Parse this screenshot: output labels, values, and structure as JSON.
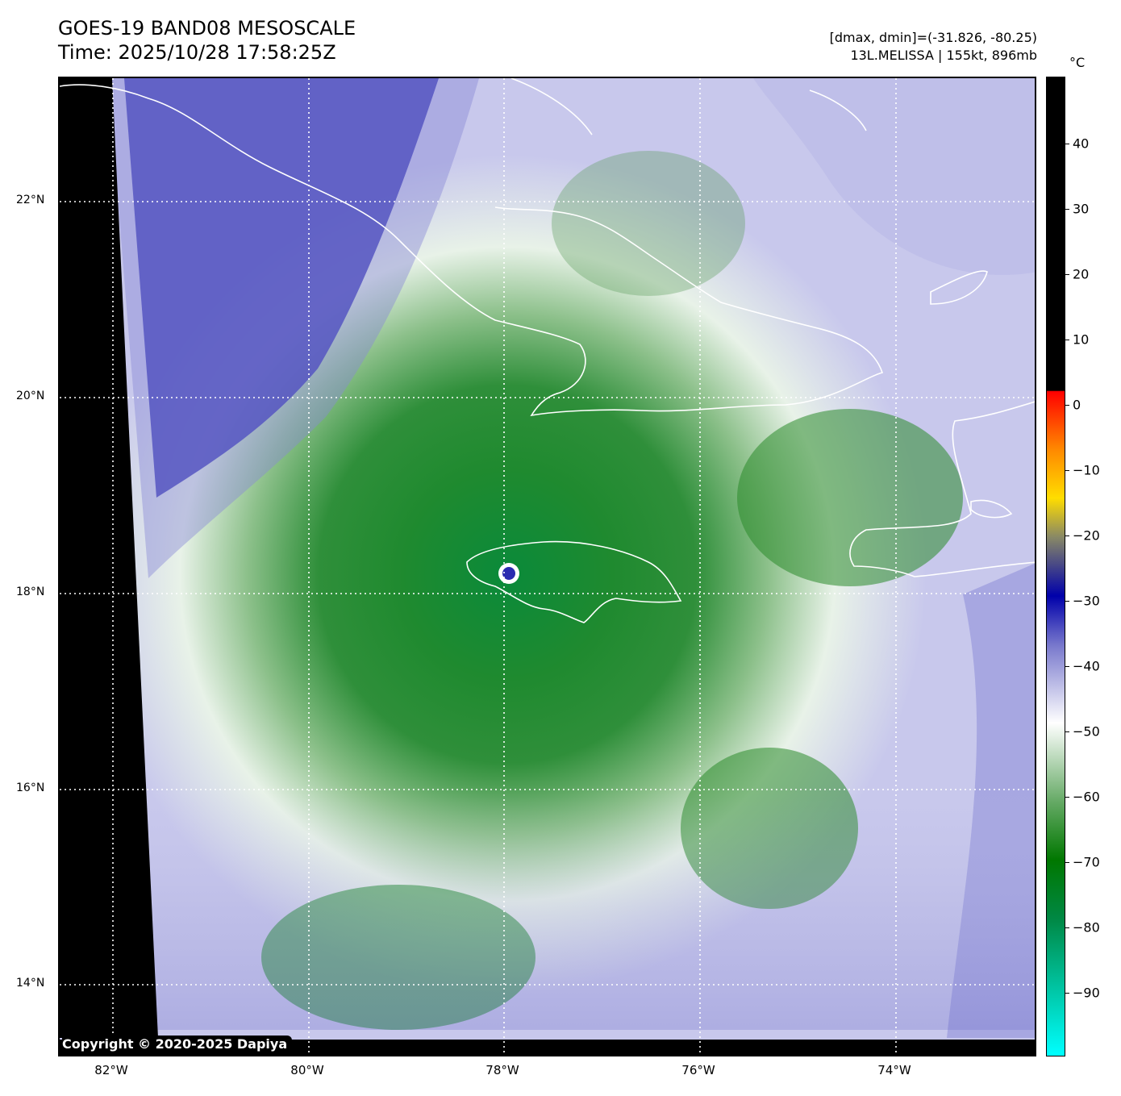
{
  "title_line1": "GOES-19 BAND08 MESOSCALE",
  "title_line2": "Time: 2025/10/28 17:58:25Z",
  "info_line1": "[dmax, dmin]=(-31.826, -80.25)",
  "info_line2": "13L.MELISSA | 155kt, 896mb",
  "copyright": "Copyright © 2020-2025 Dapiya",
  "lat_labels": [
    "22°N",
    "20°N",
    "18°N",
    "16°N",
    "14°N"
  ],
  "lon_labels": [
    "82°W",
    "80°W",
    "78°W",
    "76°W",
    "74°W"
  ],
  "colorbar": {
    "unit": "°C",
    "ticks": [
      "40",
      "30",
      "20",
      "10",
      "0",
      "−10",
      "−20",
      "−30",
      "−40",
      "−50",
      "−60",
      "−70",
      "−80",
      "−90"
    ]
  },
  "colors": {
    "cold_cloud": "#007700",
    "warm_cloud": "#ffffff",
    "dry_air": "#0000aa",
    "background": "#000000"
  }
}
